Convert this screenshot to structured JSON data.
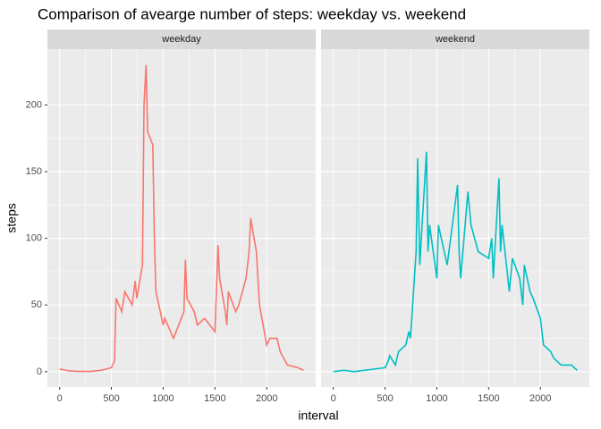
{
  "chart_data": {
    "type": "line",
    "title": "Comparison of avearge number of steps: weekday vs. weekend",
    "x_label": "interval",
    "y_label": "steps",
    "x": [
      0,
      100,
      200,
      300,
      400,
      500,
      530,
      545,
      600,
      630,
      700,
      730,
      745,
      800,
      815,
      835,
      850,
      900,
      915,
      930,
      1000,
      1015,
      1100,
      1200,
      1215,
      1230,
      1300,
      1330,
      1400,
      1500,
      1530,
      1545,
      1600,
      1615,
      1630,
      1700,
      1730,
      1800,
      1830,
      1845,
      1900,
      1930,
      2000,
      2030,
      2100,
      2130,
      2200,
      2300,
      2355
    ],
    "series": [
      {
        "name": "weekday",
        "color": "#F8766D",
        "values": [
          2,
          0.5,
          0.2,
          0.2,
          1,
          3,
          8,
          55,
          45,
          60,
          50,
          68,
          55,
          80,
          200,
          230,
          180,
          170,
          100,
          60,
          35,
          40,
          25,
          45,
          84,
          55,
          45,
          35,
          40,
          30,
          95,
          70,
          45,
          35,
          60,
          45,
          50,
          70,
          90,
          115,
          90,
          50,
          20,
          25,
          25,
          15,
          5,
          3,
          1
        ]
      },
      {
        "name": "weekend",
        "color": "#00BFC4",
        "values": [
          0,
          1,
          0,
          1,
          2,
          3,
          8,
          12,
          5,
          15,
          20,
          30,
          25,
          90,
          160,
          80,
          100,
          165,
          90,
          110,
          70,
          110,
          80,
          140,
          90,
          70,
          135,
          110,
          90,
          85,
          100,
          70,
          145,
          90,
          110,
          60,
          85,
          70,
          50,
          80,
          60,
          55,
          40,
          20,
          15,
          10,
          5,
          5,
          1
        ]
      }
    ],
    "xlim": [
      -118,
      2473
    ],
    "xticks": [
      0,
      500,
      1000,
      1500,
      2000
    ],
    "ylim": [
      -11.5,
      241.9
    ],
    "yticks": [
      0,
      50,
      100,
      150,
      200
    ],
    "grid": true
  }
}
